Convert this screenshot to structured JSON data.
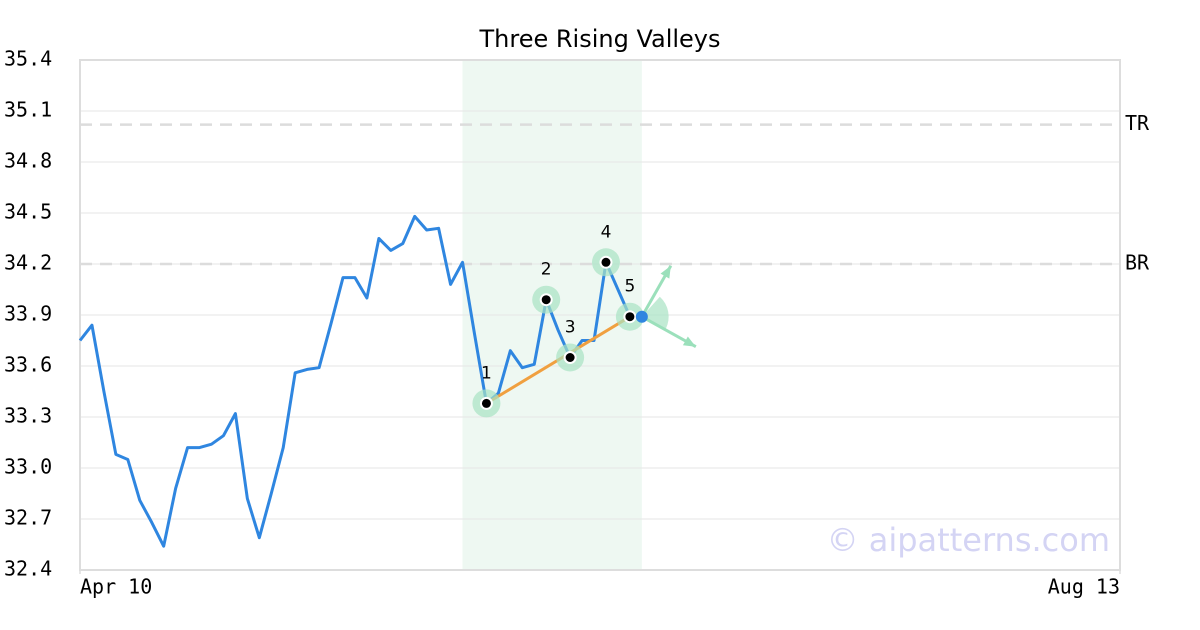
{
  "chart_data": {
    "type": "line",
    "title": "Three Rising Valleys",
    "watermark": "© aipatterns.com",
    "color": "#2f86e0",
    "values": [
      33.75,
      33.84,
      33.45,
      33.08,
      33.05,
      32.81,
      32.68,
      32.54,
      32.88,
      33.12,
      33.12,
      33.14,
      33.19,
      33.32,
      32.82,
      32.59,
      32.85,
      33.12,
      33.56,
      33.58,
      33.59,
      33.85,
      34.12,
      34.12,
      34.0,
      34.35,
      34.28,
      34.32,
      34.48,
      34.4,
      34.41,
      34.08,
      34.21,
      33.79,
      33.38,
      33.44,
      33.69,
      33.59,
      33.61,
      33.99,
      33.81,
      33.65,
      33.75,
      33.75,
      34.21,
      34.05,
      33.89,
      33.89
    ],
    "xlim": [
      0,
      87
    ],
    "xticks": [
      {
        "value": 0,
        "label": "Apr 10"
      },
      {
        "value": 87,
        "label": "Aug 13"
      }
    ],
    "ylim": [
      32.4,
      35.4
    ],
    "yticks": [
      {
        "value": 32.4,
        "label": "32.4"
      },
      {
        "value": 32.7,
        "label": "32.7"
      },
      {
        "value": 33,
        "label": "33.0"
      },
      33.3,
      33.6,
      33.9,
      {
        "value": 34.2,
        "label": "34.2"
      },
      34.5,
      34.8,
      35.1,
      35.4
    ],
    "grid": true,
    "pattern": {
      "shade": [
        32,
        47
      ],
      "trend_color": "#f0a040",
      "points": [
        {
          "label": "1",
          "index": 34
        },
        {
          "label": "2",
          "index": 39
        },
        {
          "label": "3",
          "index": 41
        },
        {
          "label": "4",
          "index": 44
        },
        {
          "label": "5",
          "index": 46
        }
      ],
      "levels": [
        {
          "label": "TR",
          "value": 35.02
        },
        {
          "label": "BR",
          "value": 34.2
        }
      ]
    }
  }
}
